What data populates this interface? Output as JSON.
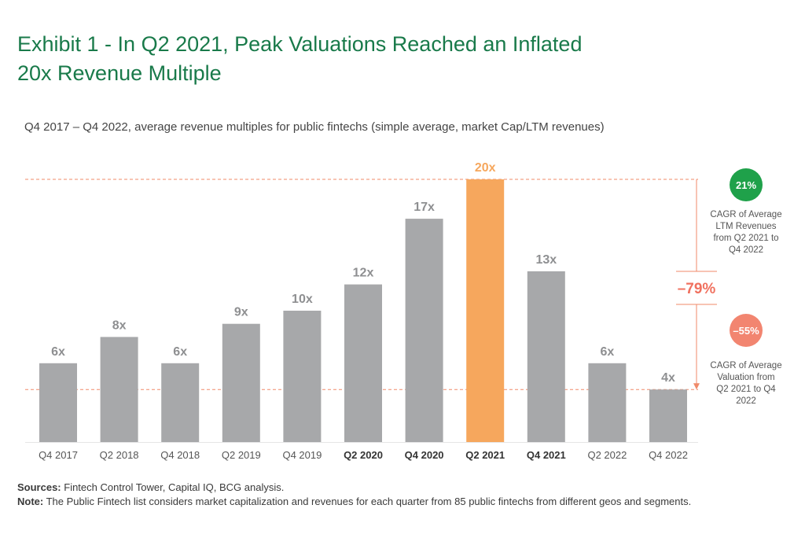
{
  "title_line1": "Exhibit 1 - In Q2 2021, Peak Valuations Reached an Inflated",
  "title_line2": "20x Revenue Multiple",
  "subtitle": "Q4 2017 – Q4 2022, average revenue multiples for public fintechs (simple average, market Cap/LTM revenues)",
  "chart_data": {
    "type": "bar",
    "categories": [
      "Q4 2017",
      "Q2 2018",
      "Q4 2018",
      "Q2 2019",
      "Q4 2019",
      "Q2 2020",
      "Q4 2020",
      "Q2 2021",
      "Q4 2021",
      "Q2 2022",
      "Q4 2022"
    ],
    "values": [
      6,
      8,
      6,
      9,
      10,
      12,
      17,
      20,
      13,
      6,
      4
    ],
    "data_labels": [
      "6x",
      "8x",
      "6x",
      "9x",
      "10x",
      "12x",
      "17x",
      "20x",
      "13x",
      "6x",
      "4x"
    ],
    "bold_categories": [
      "Q2 2020",
      "Q4 2020",
      "Q2 2021",
      "Q4 2021"
    ],
    "highlight_category": "Q2 2021",
    "bar_color": "#a7a8aa",
    "highlight_color": "#f6a75d",
    "ylim": [
      0,
      20
    ],
    "reference_lines": [
      20,
      4
    ],
    "reference_line_color": "#f08a6a",
    "change_label": "–79%",
    "change_color": "#f0715f",
    "annotations": [
      {
        "badge": "21%",
        "badge_color": "#1fa14a",
        "text": [
          "CAGR of Average",
          "LTM Revenues",
          "from Q2 2021 to",
          "Q4 2022"
        ]
      },
      {
        "badge": "–55%",
        "badge_color": "#f28570",
        "text": [
          "CAGR of Average",
          "Valuation from",
          "Q2 2021 to Q4",
          "2022"
        ]
      }
    ]
  },
  "footer": {
    "sources_label": "Sources:",
    "sources_text": " Fintech Control Tower, Capital IQ, BCG analysis.",
    "note_label": "Note:",
    "note_text": " The Public Fintech list considers market capitalization and revenues for each quarter from 85 public fintechs from different geos and segments."
  }
}
